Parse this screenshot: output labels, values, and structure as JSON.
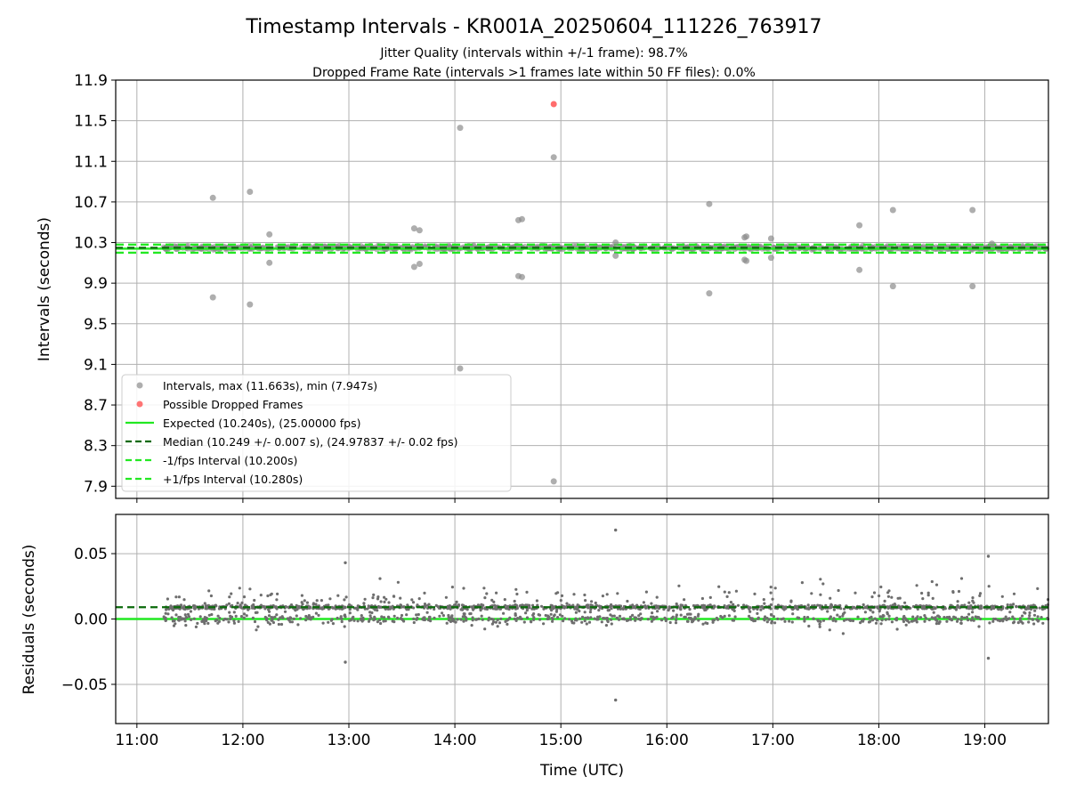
{
  "title": "Timestamp Intervals - KR001A_20250604_111226_763917",
  "subtitle_lines": [
    "Jitter Quality (intervals within +/-1 frame): 98.7%",
    "Dropped Frame Rate (intervals >1 frames late within 50 FF files): 0.0%"
  ],
  "colors": {
    "intervals": "#8c8c8c",
    "dropped": "#ff3b3b",
    "expected": "#22e822",
    "median": "#0a6a0a",
    "fps_bounds": "#22e822",
    "residual_points": "#6e6e6e",
    "grid": "#b0b0b0"
  },
  "chart_data": [
    {
      "type": "scatter",
      "ylabel": "Intervals (seconds)",
      "xlim": [
        "10:48",
        "19:36"
      ],
      "ylim": [
        7.78,
        11.9
      ],
      "x_ticks": [
        "11:00",
        "12:00",
        "13:00",
        "14:00",
        "15:00",
        "16:00",
        "17:00",
        "18:00",
        "19:00"
      ],
      "y_ticks": [
        "11.9",
        "11.5",
        "11.1",
        "10.7",
        "10.3",
        "9.9",
        "9.5",
        "9.1",
        "8.7",
        "8.3",
        "7.9"
      ],
      "grid": true,
      "legend_position": "lower-left",
      "legend": {
        "intervals": "Intervals, max (11.663s), min (7.947s)",
        "dropped": "Possible Dropped Frames",
        "expected": "Expected (10.240s), (25.00000 fps)",
        "median": "Median (10.249 +/- 0.007 s), (24.97837 +/- 0.02 fps)",
        "minus_fps": "-1/fps Interval (10.200s)",
        "plus_fps": "+1/fps Interval (10.280s)"
      },
      "expected": 10.24,
      "median": 10.249,
      "minus_fps": 10.2,
      "plus_fps": 10.28,
      "x_range_points": [
        "11:15",
        "19:36"
      ],
      "outlier_points": [
        {
          "x": "11:43",
          "y": 10.74
        },
        {
          "x": "11:43",
          "y": 9.76
        },
        {
          "x": "12:04",
          "y": 10.8
        },
        {
          "x": "12:04",
          "y": 9.69
        },
        {
          "x": "12:15",
          "y": 10.38
        },
        {
          "x": "12:15",
          "y": 10.1
        },
        {
          "x": "13:37",
          "y": 10.44
        },
        {
          "x": "13:40",
          "y": 10.42
        },
        {
          "x": "13:37",
          "y": 10.06
        },
        {
          "x": "13:40",
          "y": 10.09
        },
        {
          "x": "14:03",
          "y": 11.43
        },
        {
          "x": "14:03",
          "y": 9.06
        },
        {
          "x": "14:36",
          "y": 10.52
        },
        {
          "x": "14:38",
          "y": 10.53
        },
        {
          "x": "14:36",
          "y": 9.97
        },
        {
          "x": "14:38",
          "y": 9.96
        },
        {
          "x": "14:56",
          "y": 11.14
        },
        {
          "x": "14:56",
          "y": 7.947
        },
        {
          "x": "15:31",
          "y": 10.3
        },
        {
          "x": "15:31",
          "y": 10.17
        },
        {
          "x": "16:24",
          "y": 10.68
        },
        {
          "x": "16:24",
          "y": 9.8
        },
        {
          "x": "16:44",
          "y": 10.35
        },
        {
          "x": "16:45",
          "y": 10.36
        },
        {
          "x": "16:44",
          "y": 10.13
        },
        {
          "x": "16:45",
          "y": 10.12
        },
        {
          "x": "16:59",
          "y": 10.34
        },
        {
          "x": "16:59",
          "y": 10.15
        },
        {
          "x": "17:49",
          "y": 10.47
        },
        {
          "x": "17:49",
          "y": 10.03
        },
        {
          "x": "18:08",
          "y": 10.62
        },
        {
          "x": "18:08",
          "y": 9.87
        },
        {
          "x": "18:53",
          "y": 10.62
        },
        {
          "x": "18:53",
          "y": 9.87
        },
        {
          "x": "19:04",
          "y": 10.29
        }
      ],
      "dropped_points": [
        {
          "x": "14:56",
          "y": 11.663
        }
      ]
    },
    {
      "type": "scatter",
      "xlabel": "Time (UTC)",
      "ylabel": "Residuals (seconds)",
      "xlim": [
        "10:48",
        "19:36"
      ],
      "ylim": [
        -0.08,
        0.08
      ],
      "x_ticks": [
        "11:00",
        "12:00",
        "13:00",
        "14:00",
        "15:00",
        "16:00",
        "17:00",
        "18:00",
        "19:00"
      ],
      "y_ticks": [
        "0.05",
        "0.00",
        "−0.05"
      ],
      "grid": true,
      "expected_line": 0.0,
      "median_line": 0.009,
      "residual_band_center": 0.009,
      "residual_spread_typical": 0.03,
      "notable_points": [
        {
          "x": "15:31",
          "y": 0.068
        },
        {
          "x": "15:31",
          "y": -0.062
        },
        {
          "x": "19:02",
          "y": 0.048
        },
        {
          "x": "19:02",
          "y": -0.03
        },
        {
          "x": "12:58",
          "y": -0.033
        },
        {
          "x": "12:58",
          "y": 0.043
        }
      ]
    }
  ]
}
